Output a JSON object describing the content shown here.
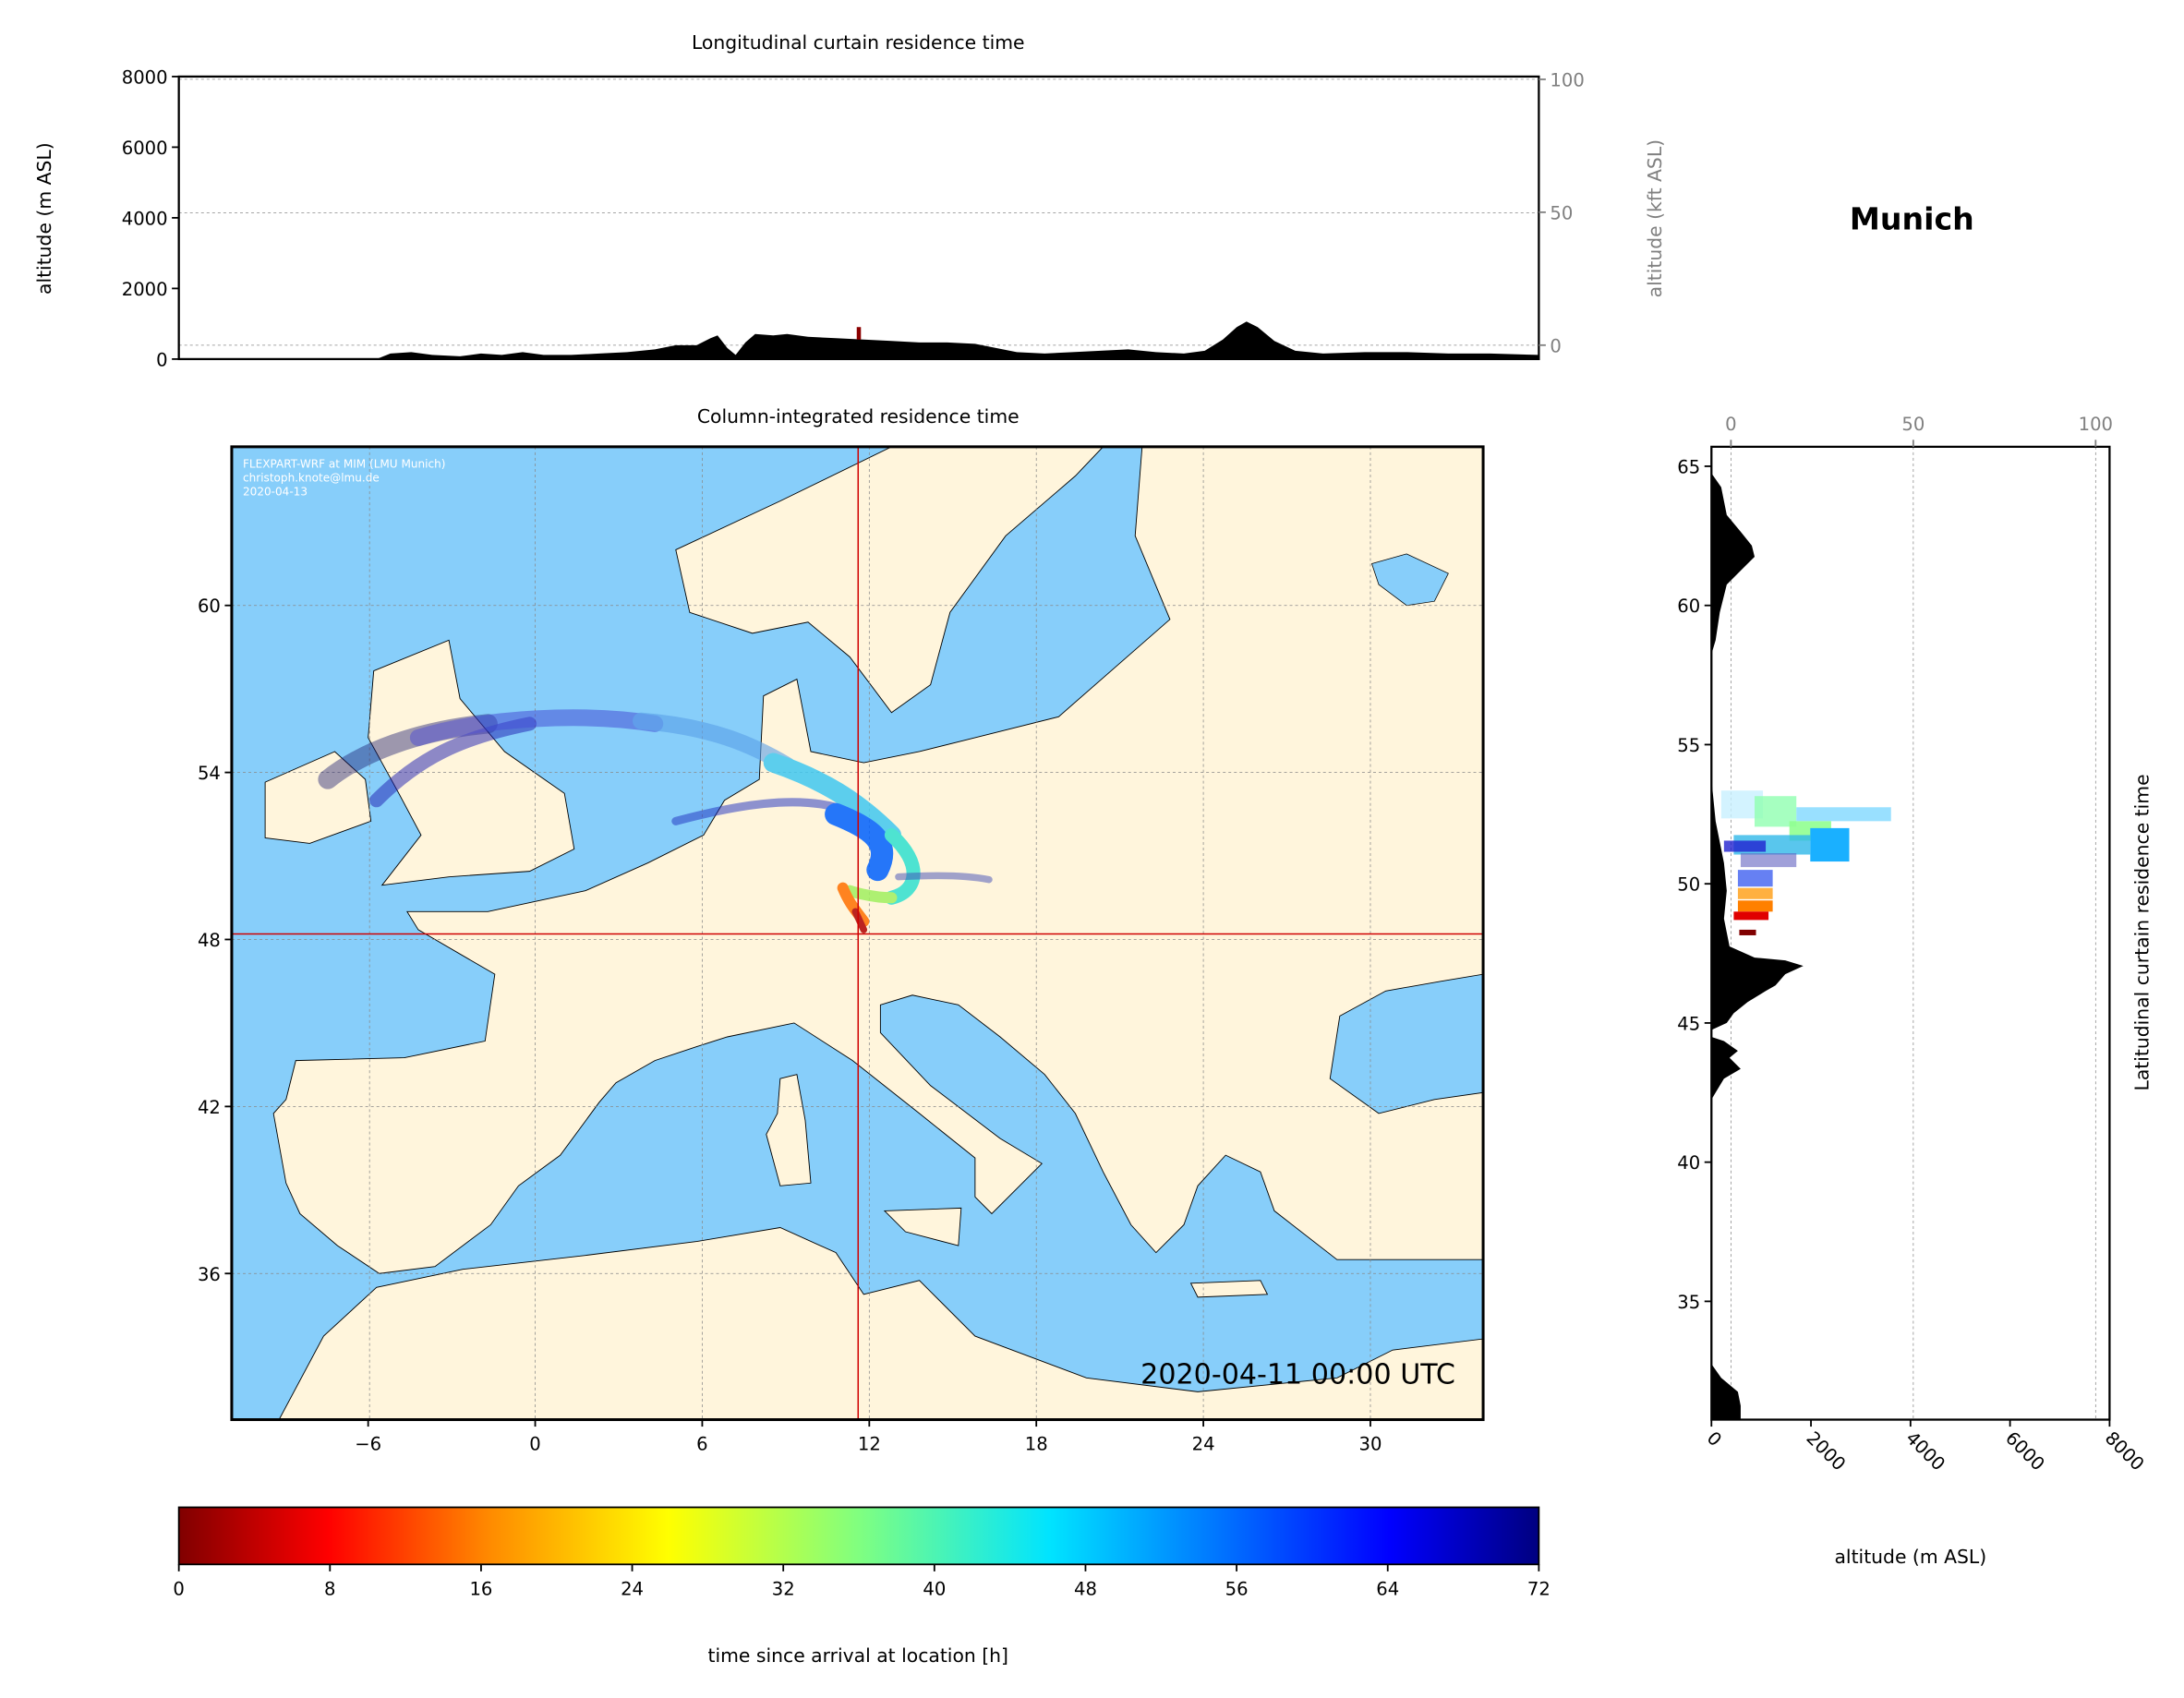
{
  "location": "Munich",
  "colors": {
    "ocean": "#87cefa",
    "land": "#fff5dc",
    "terrain": "#000000",
    "crosshair": "#d00000",
    "colormap": "jet (reversed: 0 h dark red, 72 h dark blue)"
  },
  "chart_data": [
    {
      "type": "area",
      "title": "Longitudinal curtain residence time",
      "ylabel": "altitude (m ASL)",
      "ylabel_right": "altitude (kft ASL)",
      "ylim": [
        0,
        8000
      ],
      "yticks": [
        "0",
        "2000",
        "4000",
        "6000",
        "8000"
      ],
      "yticks_right": [
        "0",
        "50",
        "100"
      ],
      "grid": true,
      "series": [
        {
          "values_m": "terrain profile along 48.1°N, peaks ~700 m near 6–8°E, ~1000 m near 25°E"
        }
      ]
    },
    {
      "type": "heatmap",
      "title": "Column-integrated residence time",
      "xlim": [
        -11,
        34
      ],
      "ylim": [
        30.75,
        65.7
      ],
      "xticks": [
        "−6",
        "0",
        "6",
        "12",
        "18",
        "24",
        "30"
      ],
      "yticks": [
        "36",
        "42",
        "48",
        "54",
        "60"
      ],
      "grid": true,
      "release_point": {
        "lon": 11.6,
        "lat": 48.1
      },
      "annotation": [
        "FLEXPART-WRF at MIM (LMU Munich)",
        "christoph.knote@lmu.de",
        "2020-04-13"
      ],
      "timestamp": "2020-04-11 00:00 UTC"
    },
    {
      "type": "area",
      "ylabel_right": "Latitudinal curtain residence time",
      "xlabel": "altitude (m ASL)",
      "xlim": [
        0,
        8000
      ],
      "xticks": [
        "0",
        "2000",
        "4000",
        "6000",
        "8000"
      ],
      "xticks_top": [
        "0",
        "50",
        "100"
      ],
      "yticks": [
        "35",
        "40",
        "45",
        "50",
        "55",
        "60",
        "65"
      ],
      "grid": true
    },
    {
      "type": "colorbar",
      "label": "time since arrival at location [h]",
      "range": [
        0,
        72
      ],
      "ticks": [
        "0",
        "8",
        "16",
        "24",
        "32",
        "40",
        "48",
        "56",
        "64",
        "72"
      ]
    }
  ]
}
